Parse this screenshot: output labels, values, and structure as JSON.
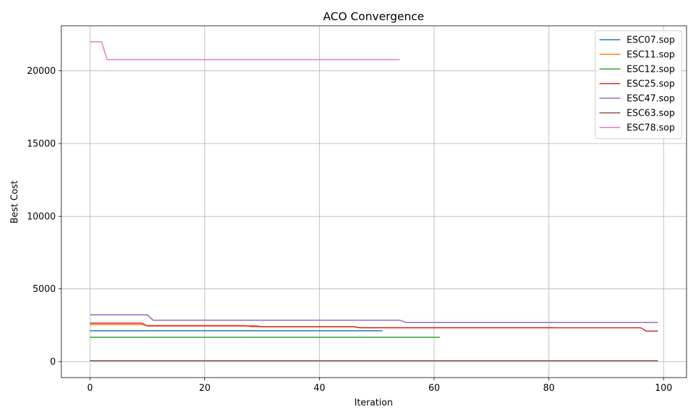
{
  "chart_data": {
    "type": "line",
    "title": "ACO Convergence",
    "xlabel": "Iteration",
    "ylabel": "Best Cost",
    "xlim": [
      -5,
      104
    ],
    "ylim": [
      -1100,
      23100
    ],
    "xticks": [
      0,
      20,
      40,
      60,
      80,
      100
    ],
    "yticks": [
      0,
      5000,
      10000,
      15000,
      20000
    ],
    "grid": true,
    "legend": "top-right",
    "series": [
      {
        "name": "ESC07.sop",
        "color": "#1f77b4",
        "points": [
          [
            0,
            2125
          ],
          [
            51,
            2125
          ]
        ]
      },
      {
        "name": "ESC11.sop",
        "color": "#ff7f0e",
        "points": [
          [
            0,
            2550
          ],
          [
            9,
            2550
          ],
          [
            10,
            2480
          ],
          [
            27,
            2480
          ],
          [
            28,
            2400
          ],
          [
            46,
            2400
          ],
          [
            47,
            2340
          ],
          [
            81,
            2340
          ]
        ]
      },
      {
        "name": "ESC12.sop",
        "color": "#2ca02c",
        "points": [
          [
            0,
            1675
          ],
          [
            61,
            1675
          ]
        ]
      },
      {
        "name": "ESC25.sop",
        "color": "#d62728",
        "points": [
          [
            0,
            2650
          ],
          [
            9,
            2650
          ],
          [
            10,
            2450
          ],
          [
            29,
            2450
          ],
          [
            30,
            2400
          ],
          [
            46,
            2400
          ],
          [
            47,
            2325
          ],
          [
            96,
            2325
          ],
          [
            97,
            2100
          ],
          [
            99,
            2100
          ]
        ]
      },
      {
        "name": "ESC47.sop",
        "color": "#9467bd",
        "points": [
          [
            0,
            3220
          ],
          [
            10,
            3220
          ],
          [
            11,
            2850
          ],
          [
            54,
            2850
          ],
          [
            55,
            2700
          ],
          [
            99,
            2700
          ]
        ]
      },
      {
        "name": "ESC63.sop",
        "color": "#8c564b",
        "points": [
          [
            0,
            62
          ],
          [
            99,
            62
          ]
        ]
      },
      {
        "name": "ESC78.sop",
        "color": "#e377c2",
        "points": [
          [
            0,
            22000
          ],
          [
            2,
            22000
          ],
          [
            3,
            20770
          ],
          [
            54,
            20770
          ]
        ]
      }
    ]
  }
}
